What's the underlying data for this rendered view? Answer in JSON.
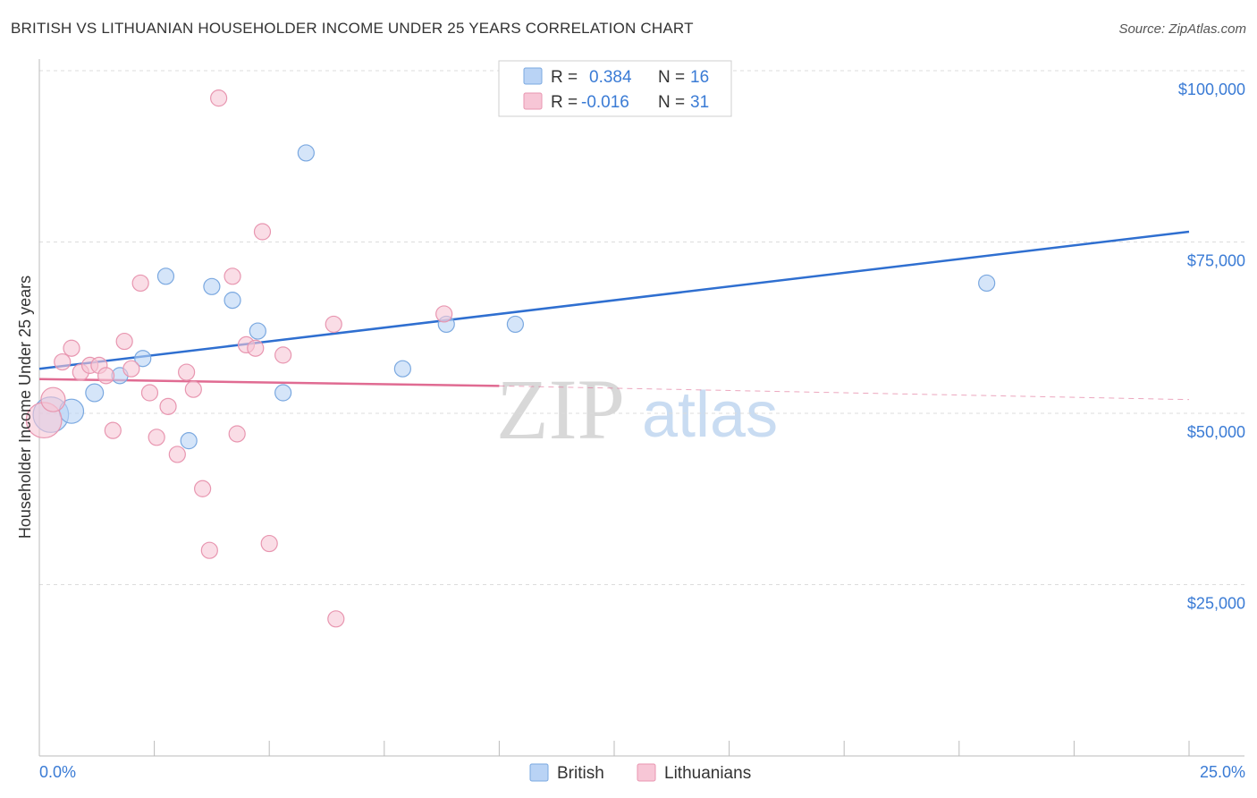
{
  "title": "BRITISH VS LITHUANIAN HOUSEHOLDER INCOME UNDER 25 YEARS CORRELATION CHART",
  "source": "Source: ZipAtlas.com",
  "watermark": {
    "zip": "ZIP",
    "atlas": "atlas"
  },
  "legend_top": [
    {
      "r_label": "R =",
      "r_value": "0.384",
      "n_label": "N =",
      "n_value": "16"
    },
    {
      "r_label": "R =",
      "r_value": "-0.016",
      "n_label": "N =",
      "n_value": "31"
    }
  ],
  "legend_bottom": [
    "British",
    "Lithuanians"
  ],
  "colors": {
    "british_fill": "#b9d3f5",
    "british_stroke": "#7aa8e0",
    "british_line": "#2f6fd0",
    "lith_fill": "#f7c6d6",
    "lith_stroke": "#e896b0",
    "lith_line": "#e06b92",
    "accent_text": "#3a7bd5"
  },
  "chart_data": {
    "type": "scatter",
    "title": "BRITISH VS LITHUANIAN HOUSEHOLDER INCOME UNDER 25 YEARS CORRELATION CHART",
    "xlabel": "",
    "ylabel": "Householder Income Under 25 years",
    "xlim": [
      0,
      25
    ],
    "ylim": [
      0,
      105000
    ],
    "x_tick_labels": [
      "0.0%",
      "25.0%"
    ],
    "y_ticks": [
      25000,
      50000,
      75000,
      100000
    ],
    "y_tick_labels": [
      "$25,000",
      "$50,000",
      "$75,000",
      "$100,000"
    ],
    "grid": true,
    "series": [
      {
        "name": "British",
        "points": [
          {
            "x": 0.25,
            "y": 49800,
            "s": 2.2
          },
          {
            "x": 0.7,
            "y": 50300,
            "s": 1.5
          },
          {
            "x": 1.2,
            "y": 53000,
            "s": 1.1
          },
          {
            "x": 1.75,
            "y": 55500,
            "s": 1
          },
          {
            "x": 2.25,
            "y": 58000,
            "s": 1
          },
          {
            "x": 2.75,
            "y": 70000,
            "s": 1
          },
          {
            "x": 3.25,
            "y": 46000,
            "s": 1
          },
          {
            "x": 3.75,
            "y": 68500,
            "s": 1
          },
          {
            "x": 4.2,
            "y": 66500,
            "s": 1
          },
          {
            "x": 4.75,
            "y": 62000,
            "s": 1
          },
          {
            "x": 5.3,
            "y": 53000,
            "s": 1
          },
          {
            "x": 5.8,
            "y": 88000,
            "s": 1
          },
          {
            "x": 7.9,
            "y": 56500,
            "s": 1
          },
          {
            "x": 8.85,
            "y": 63000,
            "s": 1
          },
          {
            "x": 10.35,
            "y": 63000,
            "s": 1
          },
          {
            "x": 20.6,
            "y": 69000,
            "s": 1
          }
        ],
        "trend": {
          "x": [
            0,
            25
          ],
          "y": [
            56500,
            76500
          ]
        }
      },
      {
        "name": "Lithuanians",
        "points": [
          {
            "x": 0.1,
            "y": 49000,
            "s": 2.2
          },
          {
            "x": 0.3,
            "y": 52000,
            "s": 1.5
          },
          {
            "x": 0.5,
            "y": 57500,
            "s": 1
          },
          {
            "x": 0.7,
            "y": 59500,
            "s": 1
          },
          {
            "x": 0.9,
            "y": 56000,
            "s": 1
          },
          {
            "x": 1.1,
            "y": 57000,
            "s": 1
          },
          {
            "x": 1.3,
            "y": 57000,
            "s": 1
          },
          {
            "x": 1.45,
            "y": 55500,
            "s": 1
          },
          {
            "x": 1.6,
            "y": 47500,
            "s": 1
          },
          {
            "x": 1.85,
            "y": 60500,
            "s": 1
          },
          {
            "x": 2.0,
            "y": 56500,
            "s": 1
          },
          {
            "x": 2.2,
            "y": 69000,
            "s": 1
          },
          {
            "x": 2.4,
            "y": 53000,
            "s": 1
          },
          {
            "x": 2.55,
            "y": 46500,
            "s": 1
          },
          {
            "x": 2.8,
            "y": 51000,
            "s": 1
          },
          {
            "x": 3.0,
            "y": 44000,
            "s": 1
          },
          {
            "x": 3.2,
            "y": 56000,
            "s": 1
          },
          {
            "x": 3.35,
            "y": 53500,
            "s": 1
          },
          {
            "x": 3.55,
            "y": 39000,
            "s": 1
          },
          {
            "x": 3.7,
            "y": 30000,
            "s": 1
          },
          {
            "x": 3.9,
            "y": 96000,
            "s": 1
          },
          {
            "x": 4.2,
            "y": 70000,
            "s": 1
          },
          {
            "x": 4.3,
            "y": 47000,
            "s": 1
          },
          {
            "x": 4.5,
            "y": 60000,
            "s": 1
          },
          {
            "x": 4.7,
            "y": 59500,
            "s": 1
          },
          {
            "x": 4.85,
            "y": 76500,
            "s": 1
          },
          {
            "x": 5.0,
            "y": 31000,
            "s": 1
          },
          {
            "x": 5.3,
            "y": 58500,
            "s": 1
          },
          {
            "x": 6.4,
            "y": 63000,
            "s": 1
          },
          {
            "x": 6.45,
            "y": 20000,
            "s": 1
          },
          {
            "x": 8.8,
            "y": 64500,
            "s": 1
          }
        ],
        "trend": {
          "x": [
            0,
            10
          ],
          "y": [
            55000,
            54000
          ]
        },
        "trend_dashed": {
          "x": [
            10,
            25
          ],
          "y": [
            54000,
            52000
          ]
        }
      }
    ]
  }
}
